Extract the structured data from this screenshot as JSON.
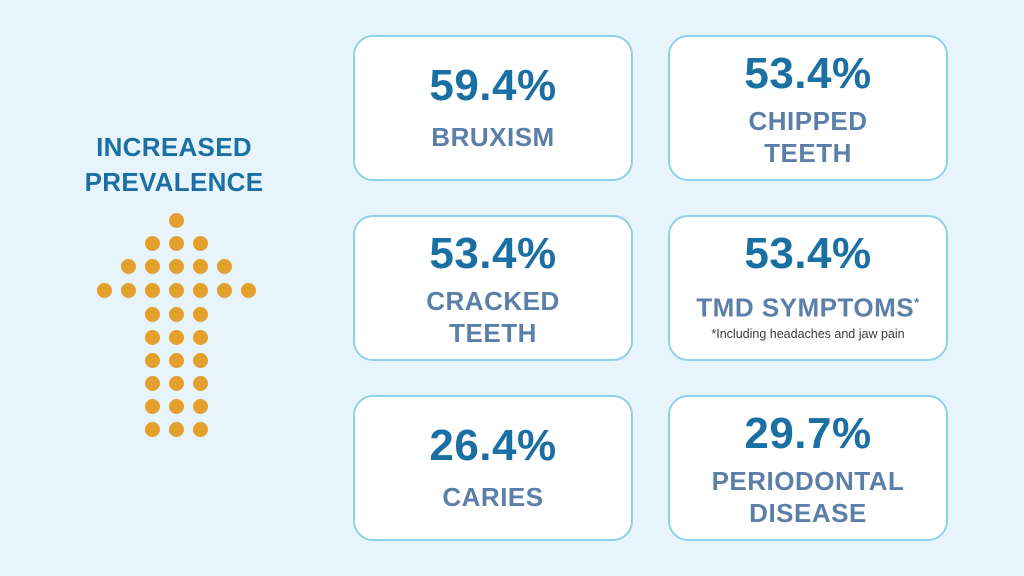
{
  "headline": {
    "line1": "INCREASED",
    "line2": "PREVALENCE"
  },
  "colors": {
    "accent": "#1a6fa3",
    "label": "#5b7fa8",
    "dots": "#e3a02d",
    "card_border": "#8fd0ea",
    "background": "#e8f4fc"
  },
  "icon": "dotted-up-arrow",
  "stats": [
    {
      "percent": "59.4%",
      "label_line1": "BRUXISM",
      "label_line2": ""
    },
    {
      "percent": "53.4%",
      "label_line1": "CHIPPED",
      "label_line2": "TEETH"
    },
    {
      "percent": "53.4%",
      "label_line1": "CRACKED",
      "label_line2": "TEETH"
    },
    {
      "percent": "53.4%",
      "label_line1": "TMD SYMPTOMS",
      "label_sup": "*",
      "footnote": "*Including headaches and jaw pain"
    },
    {
      "percent": "26.4%",
      "label_line1": "CARIES",
      "label_line2": ""
    },
    {
      "percent": "29.7%",
      "label_line1": "PERIODONTAL",
      "label_line2": "DISEASE"
    }
  ]
}
